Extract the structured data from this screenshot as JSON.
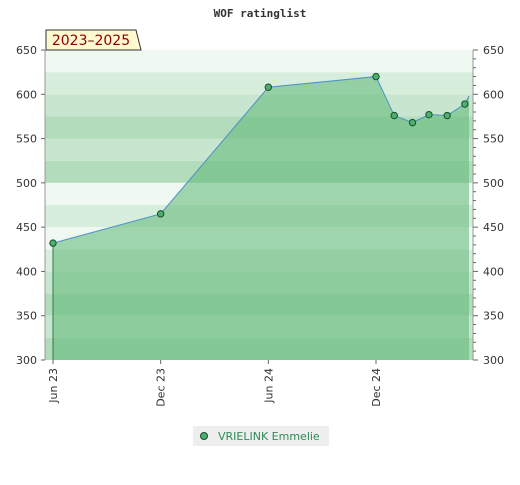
{
  "chart_data": {
    "type": "area",
    "title": "WOF ratinglist",
    "period_label": "2023–2025",
    "xlabel": "",
    "ylabel": "",
    "ylim": [
      300,
      650
    ],
    "y_ticks": [
      300,
      350,
      400,
      450,
      500,
      550,
      600,
      650
    ],
    "x_range": [
      "2023-06-01",
      "2025-06-01"
    ],
    "x_ticks": [
      {
        "label": "Jun 23",
        "date": "2023-06-01"
      },
      {
        "label": "Dec 23",
        "date": "2023-12-01"
      },
      {
        "label": "Jun 24",
        "date": "2024-06-01"
      },
      {
        "label": "Dec 24",
        "date": "2024-12-01"
      }
    ],
    "series": [
      {
        "name": "VRIELINK Emmelie",
        "points": [
          {
            "x": "2023-06-01",
            "y": 432
          },
          {
            "x": "2023-12-01",
            "y": 465
          },
          {
            "x": "2024-06-01",
            "y": 608
          },
          {
            "x": "2024-12-01",
            "y": 620
          },
          {
            "x": "2025-01-01",
            "y": 576
          },
          {
            "x": "2025-02-01",
            "y": 568
          },
          {
            "x": "2025-03-01",
            "y": 577
          },
          {
            "x": "2025-04-01",
            "y": 576
          },
          {
            "x": "2025-05-01",
            "y": 589
          }
        ]
      }
    ],
    "legend_position": "bottom-center",
    "grid": true,
    "colors": {
      "area_fill": "#5cb874",
      "line": "#4a90c8",
      "marker_fill": "#4caf6e",
      "marker_stroke": "#1a4d2e",
      "band_dark": "#b3dcbc",
      "band_light": "#f0f8f2",
      "badge_fill": "#fffacd",
      "badge_text": "#8b0000",
      "legend_text": "#2e8b57"
    }
  }
}
